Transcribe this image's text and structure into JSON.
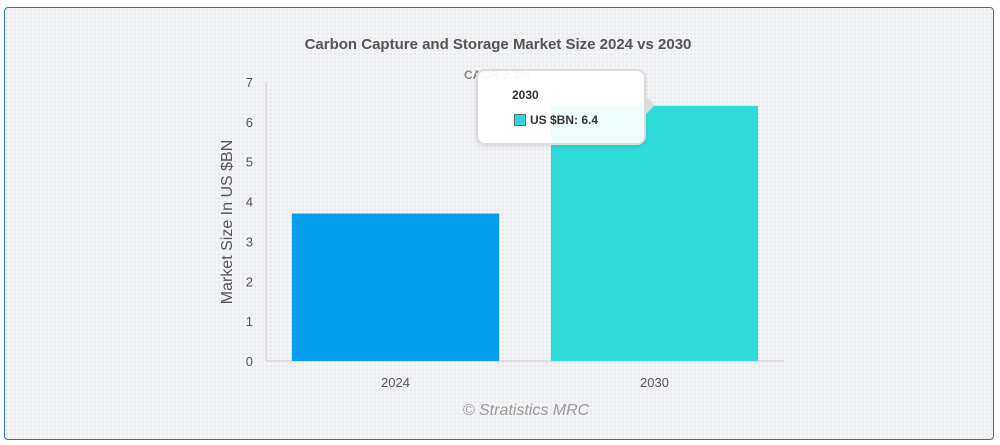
{
  "chart_data": {
    "type": "bar",
    "title": "Carbon Capture and Storage Market Size 2024 vs 2030",
    "annotation": "CAGR 9.3%",
    "categories": [
      "2024",
      "2030"
    ],
    "values": [
      3.7,
      6.4
    ],
    "colors": [
      "#039fec",
      "#2fdbd8"
    ],
    "xlabel": "",
    "ylabel": "Market Size In US $BN",
    "ylim": [
      0,
      7
    ],
    "yticks": [
      "0",
      "1",
      "2",
      "3",
      "4",
      "5",
      "6",
      "7"
    ],
    "grid": false,
    "credit": "© Stratistics MRC"
  },
  "tooltip": {
    "title": "2030",
    "label": "US $BN: 6.4",
    "swatch_color": "#2fdbd8"
  }
}
